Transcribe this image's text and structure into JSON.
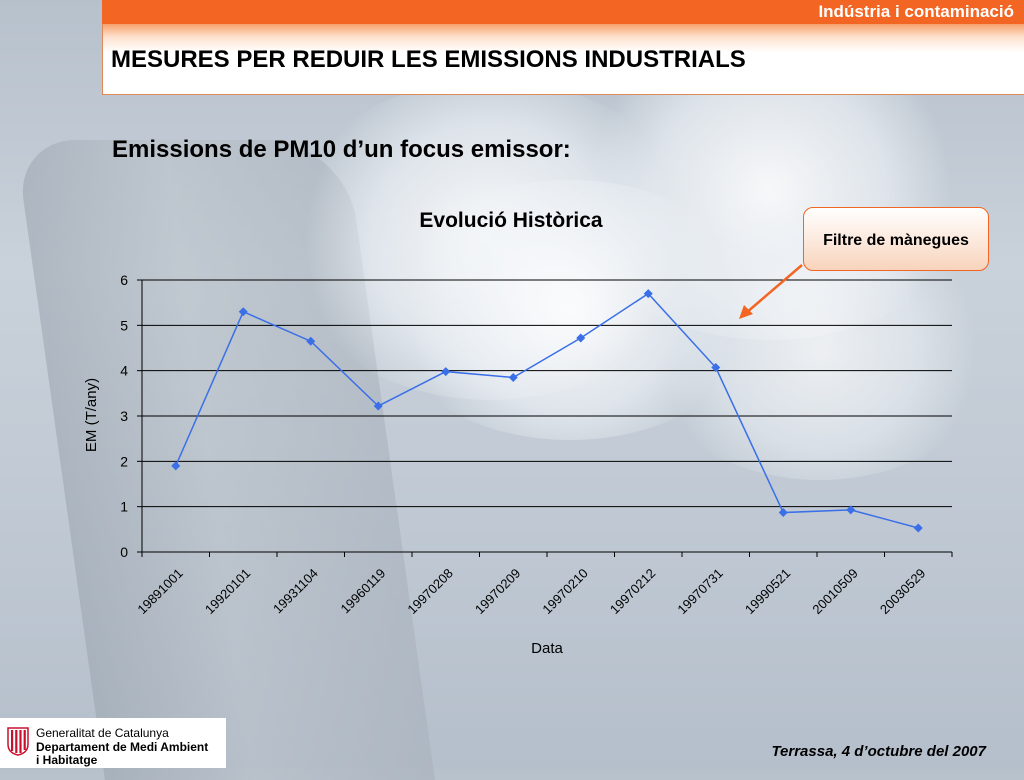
{
  "header": {
    "section_label": "Indústria i contaminació",
    "title": "MESURES PER REDUIR LES EMISSIONS INDUSTRIALS"
  },
  "subtitle": "Emissions de PM10 d’un focus emissor:",
  "callout": {
    "label": "Filtre de mànegues",
    "color": "#f26522"
  },
  "chart_data": {
    "type": "line",
    "title": "Evolució Històrica",
    "xlabel": "Data",
    "ylabel": "EM (T/any)",
    "ylim": [
      0,
      6
    ],
    "yticks": [
      0,
      1,
      2,
      3,
      4,
      5,
      6
    ],
    "grid": true,
    "categories": [
      "19891001",
      "19920101",
      "19931104",
      "19960119",
      "19970208",
      "19970209",
      "19970210",
      "19970212",
      "19970731",
      "19990521",
      "20010509",
      "20030529"
    ],
    "series": [
      {
        "values": [
          1.9,
          5.3,
          4.65,
          3.22,
          3.98,
          3.85,
          4.72,
          5.7,
          4.07,
          0.87,
          0.93,
          0.53
        ],
        "color": "#3a6fe8"
      }
    ]
  },
  "footer": {
    "logo_lines": [
      "Generalitat de Catalunya",
      "Departament de Medi Ambient",
      "i Habitatge"
    ],
    "logo_icon": "generalitat-emblem-icon",
    "date_text": "Terrassa, 4 d’octubre del 2007"
  }
}
